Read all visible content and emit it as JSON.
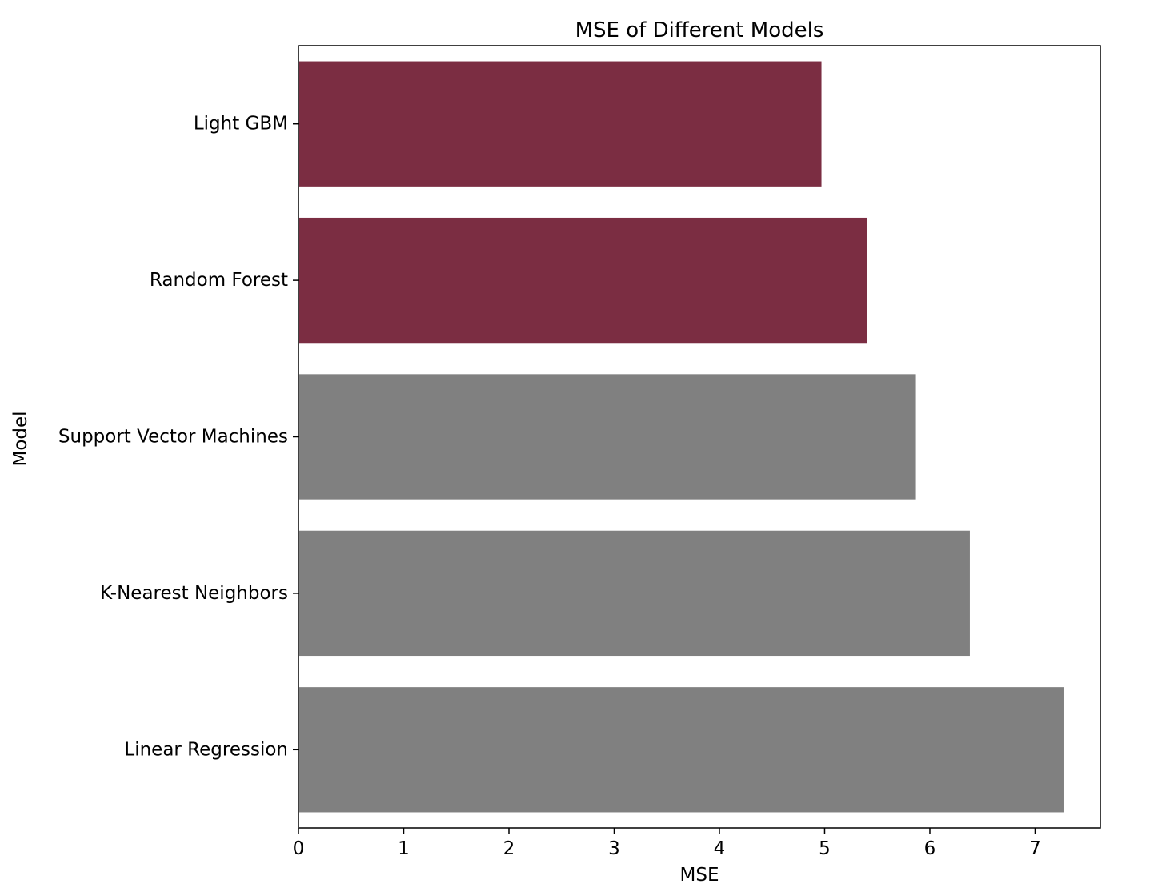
{
  "chart_data": {
    "type": "bar",
    "orientation": "horizontal",
    "title": "MSE of Different Models",
    "xlabel": "MSE",
    "ylabel": "Model",
    "categories": [
      "Light GBM",
      "Random Forest",
      "Support Vector Machines",
      "K-Nearest Neighbors",
      "Linear Regression"
    ],
    "values": [
      4.97,
      5.4,
      5.86,
      6.38,
      7.27
    ],
    "bar_colors": [
      "#7b2d42",
      "#7b2d42",
      "#808080",
      "#808080",
      "#808080"
    ],
    "xlim": [
      0,
      7.62
    ],
    "xticks": [
      0,
      1,
      2,
      3,
      4,
      5,
      6,
      7
    ],
    "grid": false,
    "legend": "none"
  }
}
